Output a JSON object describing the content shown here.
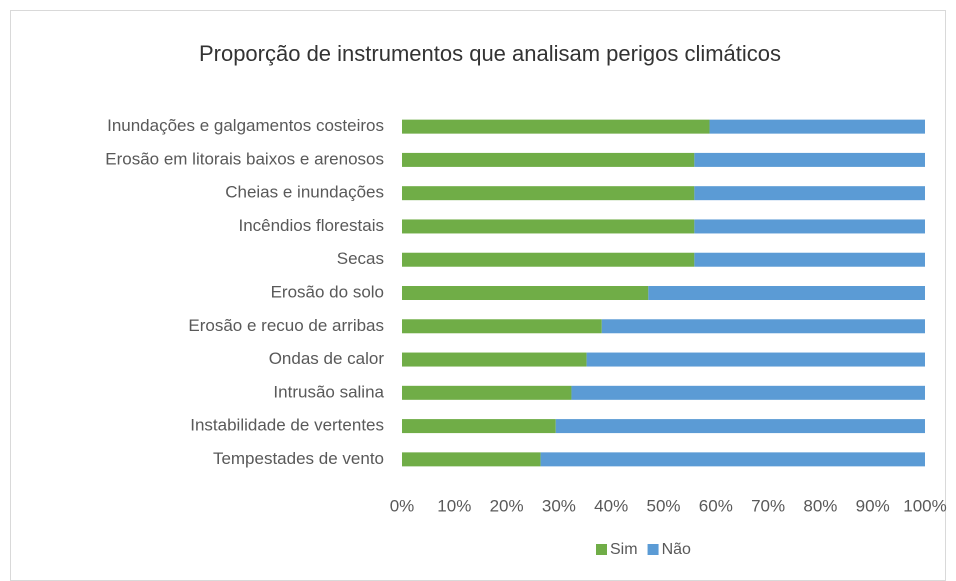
{
  "chart_data": {
    "type": "bar",
    "orientation": "horizontal",
    "stacked": true,
    "title": "Proporção de instrumentos que analisam perigos climáticos",
    "categories": [
      "Inundações e galgamentos costeiros",
      "Erosão em litorais baixos e arenosos",
      "Cheias e inundações",
      "Incêndios florestais",
      "Secas",
      "Erosão do solo",
      "Erosão e recuo de arribas",
      "Ondas de calor",
      "Intrusão salina",
      "Instabilidade de vertentes",
      "Tempestades de vento"
    ],
    "series": [
      {
        "name": "Sim",
        "color": "#70ad47",
        "values": [
          58.8,
          55.9,
          55.9,
          55.9,
          55.9,
          47.1,
          38.2,
          35.3,
          32.4,
          29.4,
          26.5
        ]
      },
      {
        "name": "Não",
        "color": "#5b9bd5",
        "values": [
          41.2,
          44.1,
          44.1,
          44.1,
          44.1,
          52.9,
          61.8,
          64.7,
          67.6,
          70.6,
          73.5
        ]
      }
    ],
    "xlim": [
      0,
      100
    ],
    "xticks": [
      {
        "value": 0,
        "label": "0%"
      },
      {
        "value": 10,
        "label": "10%"
      },
      {
        "value": 20,
        "label": "20%"
      },
      {
        "value": 30,
        "label": "30%"
      },
      {
        "value": 40,
        "label": "40%"
      },
      {
        "value": 50,
        "label": "50%"
      },
      {
        "value": 60,
        "label": "60%"
      },
      {
        "value": 70,
        "label": "70%"
      },
      {
        "value": 80,
        "label": "80%"
      },
      {
        "value": 90,
        "label": "90%"
      },
      {
        "value": 100,
        "label": "100%"
      }
    ],
    "legend": "bottom"
  }
}
